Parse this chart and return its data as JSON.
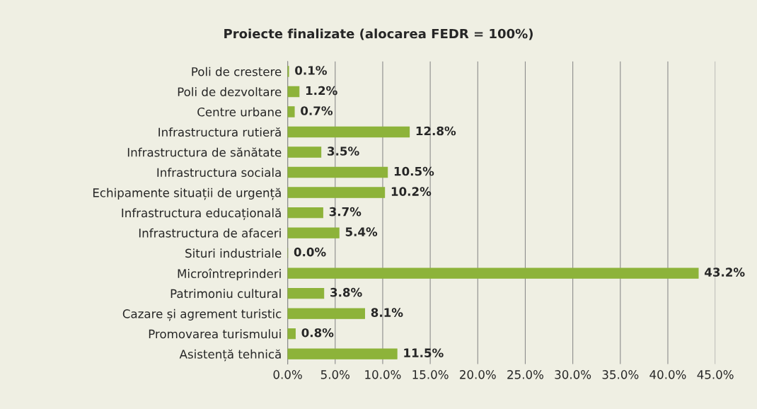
{
  "chart_data": {
    "type": "bar",
    "orientation": "horizontal",
    "title": "Proiecte finalizate (alocarea FEDR = 100%)",
    "categories": [
      "Poli de crestere",
      "Poli de dezvoltare",
      "Centre urbane",
      "Infrastructura rutieră",
      "Infrastructura de sănătate",
      "Infrastructura sociala",
      "Echipamente situații de urgență",
      "Infrastructura educațională",
      "Infrastructura de afaceri",
      "Situri industriale",
      "Microîntreprinderi",
      "Patrimoniu cultural",
      "Cazare și agrement turistic",
      "Promovarea turismului",
      "Asistență tehnică"
    ],
    "values": [
      0.1,
      1.2,
      0.7,
      12.8,
      3.5,
      10.5,
      10.2,
      3.7,
      5.4,
      0.0,
      43.2,
      3.8,
      8.1,
      0.8,
      11.5
    ],
    "value_labels": [
      "0.1%",
      "1.2%",
      "0.7%",
      "12.8%",
      "3.5%",
      "10.5%",
      "10.2%",
      "3.7%",
      "5.4%",
      "0.0%",
      "43.2%",
      "3.8%",
      "8.1%",
      "0.8%",
      "11.5%"
    ],
    "color": "#8db33a",
    "xlim": [
      0,
      45
    ],
    "xticks": [
      {
        "value": 0,
        "label": "0.0%"
      },
      {
        "value": 5,
        "label": "5.0%"
      },
      {
        "value": 10,
        "label": "10.0%"
      },
      {
        "value": 15,
        "label": "15.0%"
      },
      {
        "value": 20,
        "label": "20.0%"
      },
      {
        "value": 25,
        "label": "25.0%"
      },
      {
        "value": 30,
        "label": "30.0%"
      },
      {
        "value": 35,
        "label": "35.0%"
      },
      {
        "value": 40,
        "label": "40.0%"
      },
      {
        "value": 45,
        "label": "45.0%"
      }
    ],
    "grid": "x"
  }
}
